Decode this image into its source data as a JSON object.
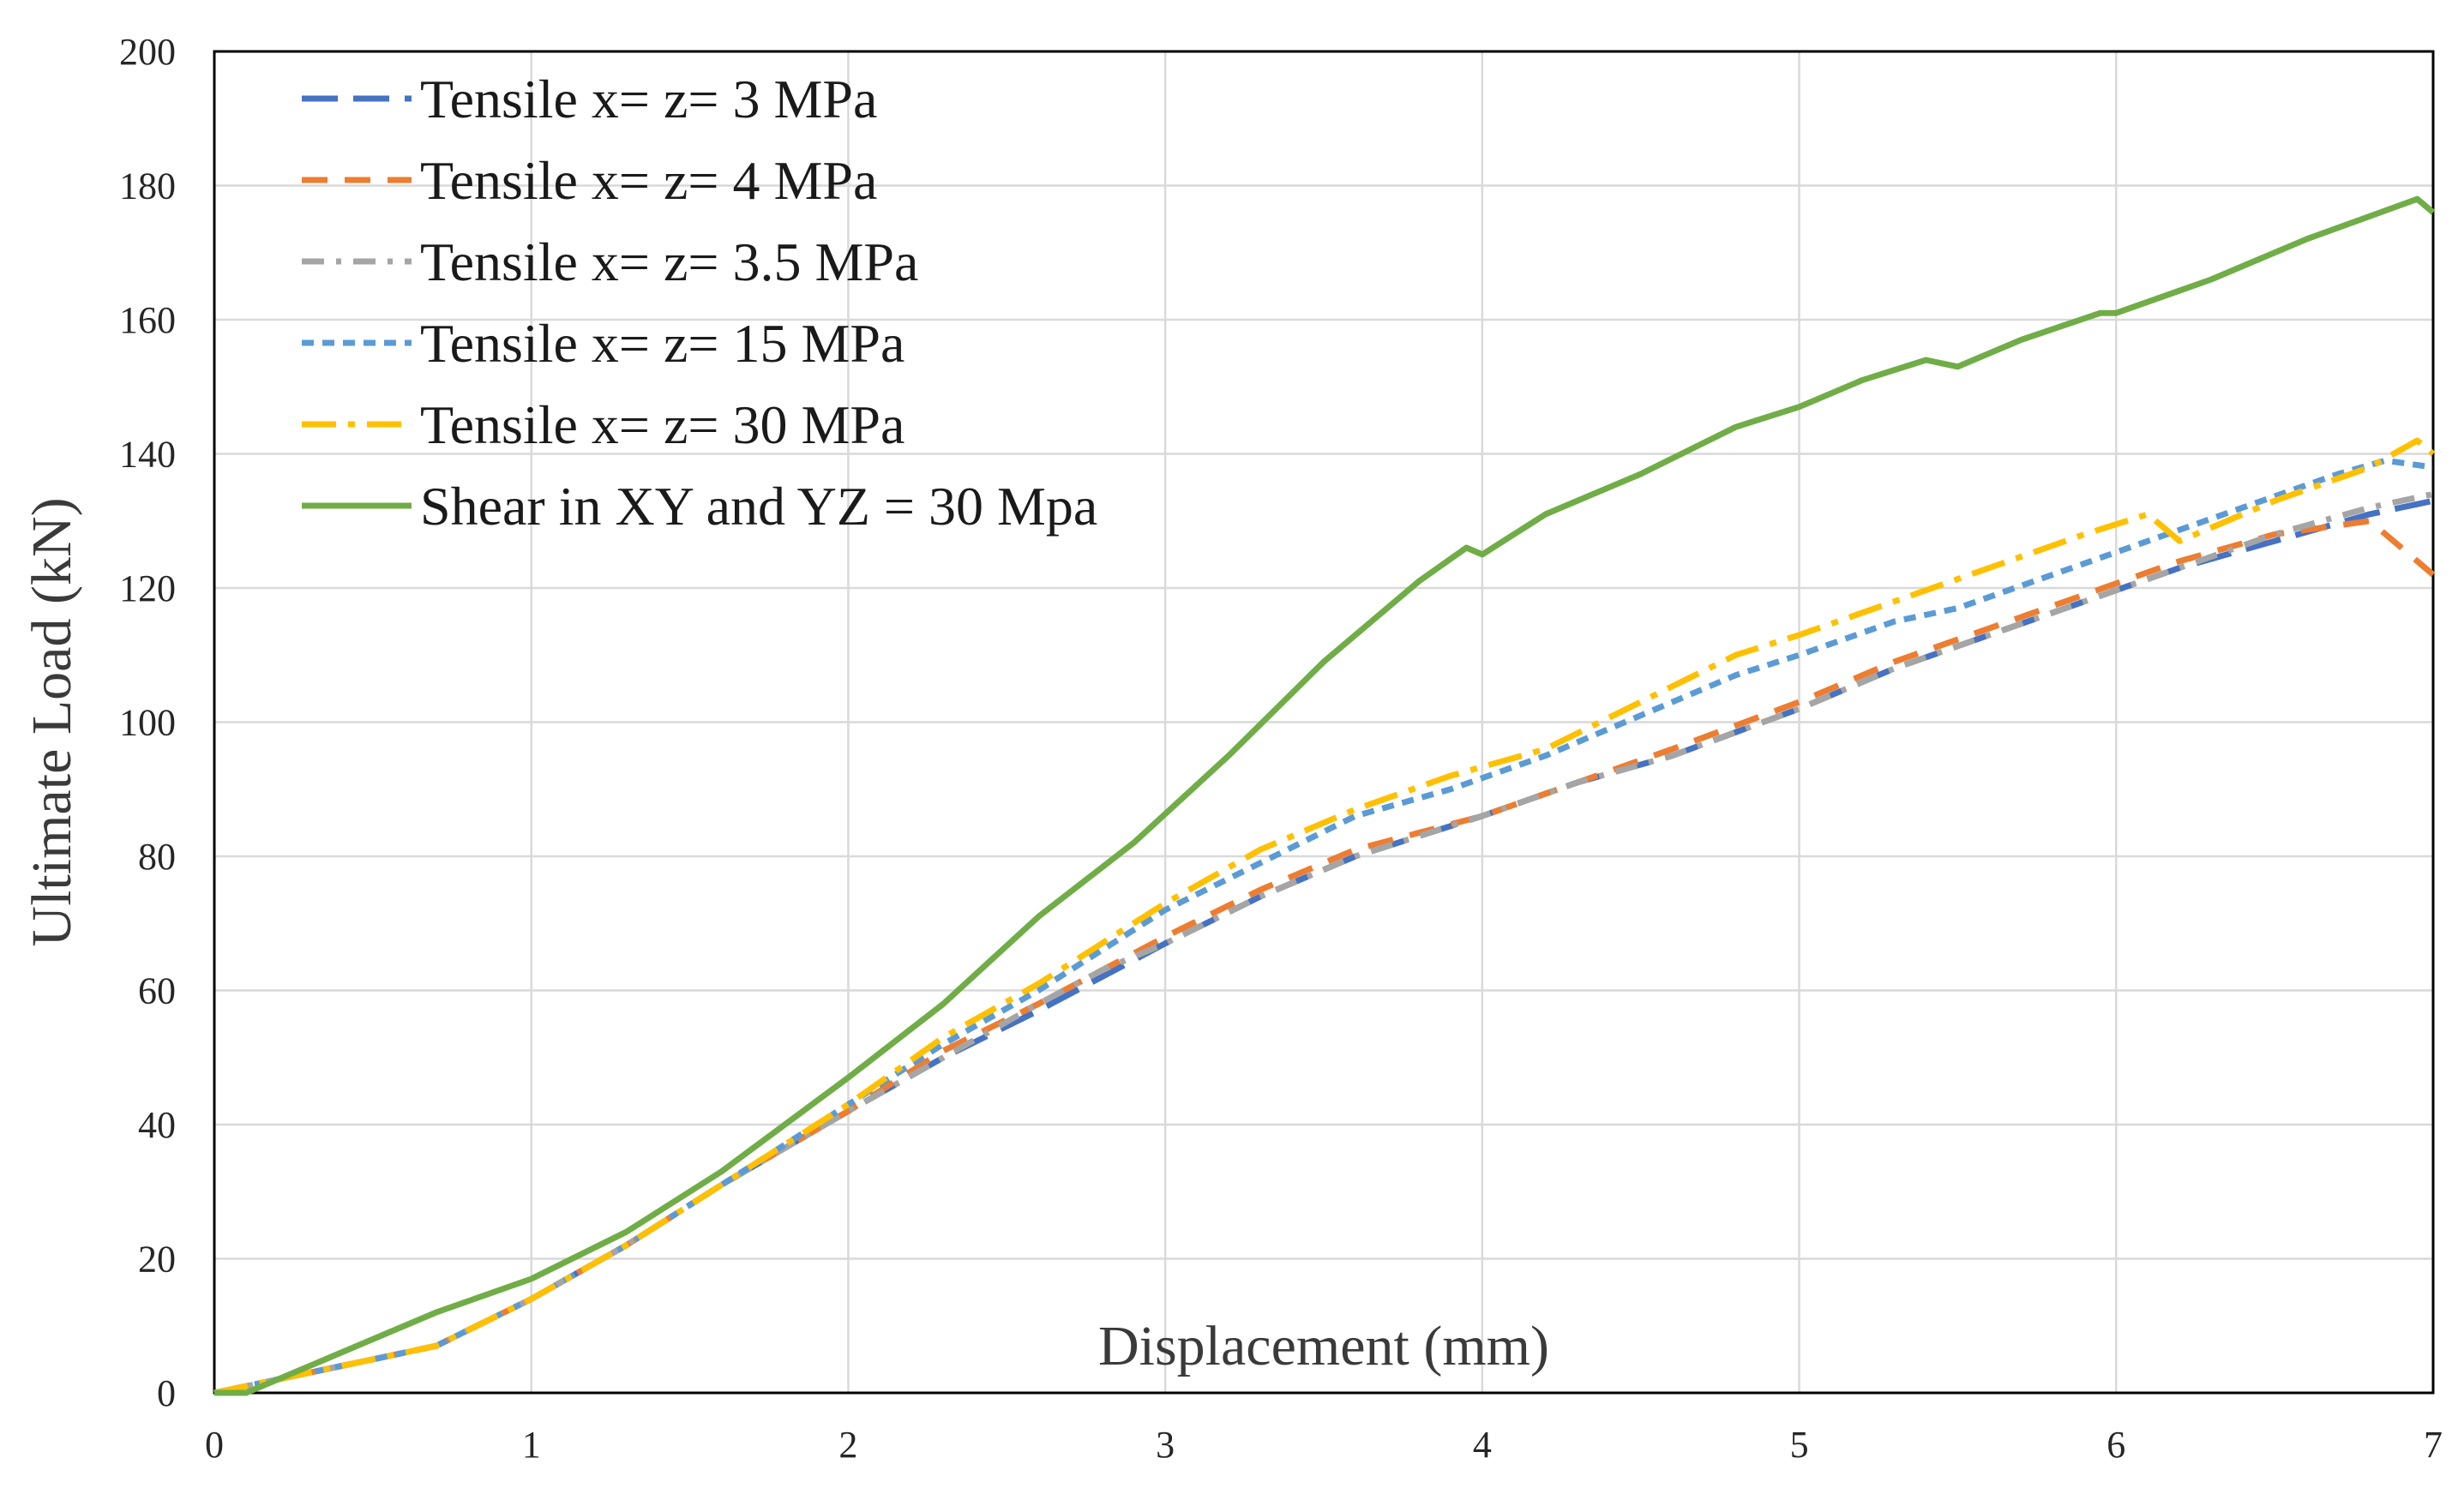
{
  "chart_data": {
    "type": "line",
    "title": "",
    "xlabel": "Displacement (mm)",
    "ylabel": "Ultimate Load (kN)",
    "xlim": [
      0,
      7
    ],
    "ylim": [
      0,
      200
    ],
    "x_ticks": [
      0,
      1,
      2,
      3,
      4,
      5,
      6,
      7
    ],
    "y_ticks": [
      0,
      20,
      40,
      60,
      80,
      100,
      120,
      140,
      160,
      180,
      200
    ],
    "grid": true,
    "legend_position": "top-left",
    "series": [
      {
        "name": "Tensile x= z= 3 MPa",
        "color": "#4472C4",
        "dash": "long-dash",
        "x": [
          0,
          0.1,
          0.3,
          0.5,
          0.7,
          1.0,
          1.3,
          1.6,
          2.0,
          2.3,
          2.6,
          2.8,
          3.0,
          3.3,
          3.6,
          4.0,
          4.3,
          4.6,
          5.0,
          5.3,
          5.6,
          5.9,
          6.2,
          6.5,
          6.8,
          7.0
        ],
        "y": [
          0,
          1,
          3,
          5,
          7,
          14,
          22,
          31,
          42,
          50,
          57,
          62,
          67,
          74,
          80,
          86,
          91,
          95,
          102,
          108,
          113,
          118,
          123,
          127,
          131,
          133
        ]
      },
      {
        "name": "Tensile x= z= 4 MPa",
        "color": "#ED7D31",
        "dash": "dash",
        "x": [
          0,
          0.1,
          0.3,
          0.5,
          0.7,
          1.0,
          1.3,
          1.6,
          2.0,
          2.3,
          2.6,
          2.8,
          3.0,
          3.3,
          3.6,
          4.0,
          4.3,
          4.6,
          5.0,
          5.3,
          5.6,
          5.9,
          6.2,
          6.5,
          6.8,
          6.9,
          7.0
        ],
        "y": [
          0,
          1,
          3,
          5,
          7,
          14,
          22,
          31,
          42,
          51,
          58,
          63,
          68,
          75,
          81,
          86,
          91,
          96,
          103,
          109,
          114,
          119,
          124,
          128,
          130,
          126,
          122
        ]
      },
      {
        "name": "Tensile x= z= 3.5 MPa",
        "color": "#A5A5A5",
        "dash": "dash-dot",
        "x": [
          0,
          0.1,
          0.3,
          0.5,
          0.7,
          1.0,
          1.3,
          1.6,
          2.0,
          2.3,
          2.6,
          2.8,
          3.0,
          3.3,
          3.6,
          4.0,
          4.3,
          4.6,
          5.0,
          5.3,
          5.6,
          5.9,
          6.2,
          6.5,
          6.8,
          7.0
        ],
        "y": [
          0,
          1,
          3,
          5,
          7,
          14,
          22,
          31,
          42,
          50,
          58,
          63,
          67,
          74,
          80,
          86,
          91,
          95,
          102,
          108,
          113,
          118,
          123,
          128,
          132,
          134
        ]
      },
      {
        "name": "Tensile x= z= 15 MPa",
        "color": "#5B9BD5",
        "dash": "short-dash",
        "x": [
          0,
          0.1,
          0.3,
          0.5,
          0.7,
          1.0,
          1.3,
          1.6,
          2.0,
          2.3,
          2.6,
          2.8,
          3.0,
          3.3,
          3.6,
          3.9,
          4.2,
          4.5,
          4.8,
          5.0,
          5.3,
          5.5,
          5.8,
          6.1,
          6.4,
          6.7,
          6.85,
          7.0
        ],
        "y": [
          0,
          1,
          3,
          5,
          7,
          14,
          22,
          31,
          43,
          52,
          60,
          66,
          72,
          79,
          86,
          90,
          95,
          101,
          107,
          110,
          115,
          117,
          122,
          127,
          132,
          137,
          139,
          138
        ]
      },
      {
        "name": "Tensile x= z= 30 MPa",
        "color": "#FFC000",
        "dash": "long-dash-dot",
        "x": [
          0,
          0.1,
          0.3,
          0.5,
          0.7,
          1.0,
          1.3,
          1.6,
          2.0,
          2.3,
          2.6,
          2.8,
          3.0,
          3.3,
          3.6,
          3.9,
          4.2,
          4.5,
          4.8,
          5.0,
          5.3,
          5.6,
          5.9,
          6.1,
          6.2,
          6.5,
          6.8,
          6.95,
          7.0
        ],
        "y": [
          0,
          1,
          3,
          5,
          7,
          14,
          22,
          31,
          43,
          53,
          61,
          67,
          73,
          81,
          87,
          92,
          96,
          103,
          110,
          113,
          118,
          123,
          128,
          131,
          127,
          133,
          138,
          142,
          140
        ]
      },
      {
        "name": "Shear in XY and YZ = 30 Mpa",
        "color": "#70AD47",
        "dash": "solid",
        "x": [
          0,
          0.1,
          0.3,
          0.5,
          0.7,
          1.0,
          1.3,
          1.6,
          2.0,
          2.3,
          2.6,
          2.9,
          3.2,
          3.5,
          3.8,
          3.95,
          4.0,
          4.2,
          4.5,
          4.8,
          5.0,
          5.2,
          5.4,
          5.5,
          5.7,
          5.95,
          6.0,
          6.3,
          6.6,
          6.95,
          7.0
        ],
        "y": [
          0,
          0,
          4,
          8,
          12,
          17,
          24,
          33,
          47,
          58,
          71,
          82,
          95,
          109,
          121,
          126,
          125,
          131,
          137,
          144,
          147,
          151,
          154,
          153,
          157,
          161,
          161,
          166,
          172,
          178,
          176
        ]
      }
    ]
  }
}
